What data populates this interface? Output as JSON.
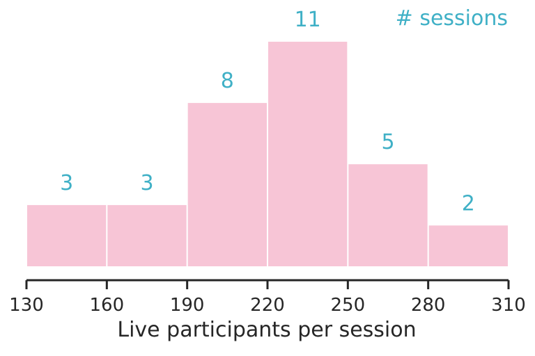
{
  "chart_data": {
    "type": "bar",
    "subtype": "histogram",
    "bin_edges": [
      130,
      160,
      190,
      220,
      250,
      280,
      310
    ],
    "values": [
      3,
      3,
      8,
      11,
      5,
      2
    ],
    "data_labels": [
      "3",
      "3",
      "8",
      "11",
      "5",
      "2"
    ],
    "xlabel": "Live participants per session",
    "x_ticks": [
      "130",
      "160",
      "190",
      "220",
      "250",
      "280",
      "310"
    ],
    "xlim": [
      130,
      310
    ],
    "ylim": [
      0,
      11
    ],
    "y_axis_visible": false,
    "grid": false,
    "annotation": "# sessions",
    "annotation_position": "top-right",
    "colors": {
      "bar": "#f7c5d6",
      "label": "#3fb0c6",
      "axis": "#262626"
    }
  }
}
